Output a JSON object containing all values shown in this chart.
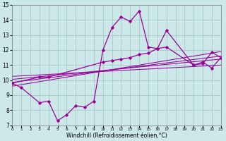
{
  "xlabel": "Windchill (Refroidissement éolien,°C)",
  "xlim": [
    0,
    23
  ],
  "ylim": [
    7,
    15
  ],
  "xticks": [
    0,
    1,
    2,
    3,
    4,
    5,
    6,
    7,
    8,
    9,
    10,
    11,
    12,
    13,
    14,
    15,
    16,
    17,
    18,
    19,
    20,
    21,
    22,
    23
  ],
  "yticks": [
    7,
    8,
    9,
    10,
    11,
    12,
    13,
    14,
    15
  ],
  "bg_color": "#cce8e8",
  "grid_color": "#aacccc",
  "line_color": "#990099",
  "curve1_x": [
    0,
    1,
    3,
    4,
    5,
    6,
    7,
    8,
    9,
    10,
    11,
    12,
    13,
    14,
    15,
    16,
    17,
    20,
    21,
    22,
    23
  ],
  "curve1_y": [
    9.8,
    9.5,
    8.5,
    8.6,
    7.3,
    7.7,
    8.3,
    8.2,
    8.6,
    12.0,
    13.5,
    14.2,
    13.9,
    14.6,
    12.2,
    12.1,
    13.3,
    11.0,
    11.2,
    10.8,
    11.5
  ],
  "curve2_x": [
    0,
    3,
    4,
    10,
    11,
    12,
    13,
    14,
    15,
    16,
    17,
    20,
    21,
    22,
    23
  ],
  "curve2_y": [
    9.8,
    10.2,
    10.2,
    11.2,
    11.3,
    11.4,
    11.5,
    11.7,
    11.8,
    12.1,
    12.2,
    11.0,
    11.1,
    11.85,
    11.5
  ],
  "line1_x": [
    0,
    23
  ],
  "line1_y": [
    9.6,
    11.9
  ],
  "line2_x": [
    0,
    23
  ],
  "line2_y": [
    9.85,
    11.6
  ],
  "line3_x": [
    0,
    23
  ],
  "line3_y": [
    10.05,
    11.4
  ],
  "line4_x": [
    0,
    23
  ],
  "line4_y": [
    10.25,
    11.0
  ]
}
